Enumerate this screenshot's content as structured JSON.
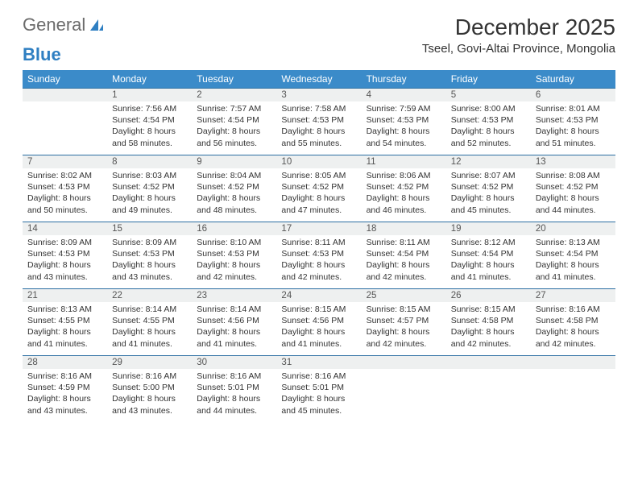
{
  "brand": {
    "word1": "General",
    "word2": "Blue"
  },
  "title": "December 2025",
  "location": "Tseel, Govi-Altai Province, Mongolia",
  "colors": {
    "header_bg": "#3b8bc9",
    "header_text": "#ffffff",
    "daynum_bg": "#eef0f0",
    "row_border": "#2c6fa3",
    "body_text": "#333333",
    "logo_gray": "#6b6b6b",
    "logo_blue": "#2f7fc2"
  },
  "weekdays": [
    "Sunday",
    "Monday",
    "Tuesday",
    "Wednesday",
    "Thursday",
    "Friday",
    "Saturday"
  ],
  "weeks": [
    [
      null,
      {
        "d": "1",
        "sr": "7:56 AM",
        "ss": "4:54 PM",
        "dl": "8 hours and 58 minutes."
      },
      {
        "d": "2",
        "sr": "7:57 AM",
        "ss": "4:54 PM",
        "dl": "8 hours and 56 minutes."
      },
      {
        "d": "3",
        "sr": "7:58 AM",
        "ss": "4:53 PM",
        "dl": "8 hours and 55 minutes."
      },
      {
        "d": "4",
        "sr": "7:59 AM",
        "ss": "4:53 PM",
        "dl": "8 hours and 54 minutes."
      },
      {
        "d": "5",
        "sr": "8:00 AM",
        "ss": "4:53 PM",
        "dl": "8 hours and 52 minutes."
      },
      {
        "d": "6",
        "sr": "8:01 AM",
        "ss": "4:53 PM",
        "dl": "8 hours and 51 minutes."
      }
    ],
    [
      {
        "d": "7",
        "sr": "8:02 AM",
        "ss": "4:53 PM",
        "dl": "8 hours and 50 minutes."
      },
      {
        "d": "8",
        "sr": "8:03 AM",
        "ss": "4:52 PM",
        "dl": "8 hours and 49 minutes."
      },
      {
        "d": "9",
        "sr": "8:04 AM",
        "ss": "4:52 PM",
        "dl": "8 hours and 48 minutes."
      },
      {
        "d": "10",
        "sr": "8:05 AM",
        "ss": "4:52 PM",
        "dl": "8 hours and 47 minutes."
      },
      {
        "d": "11",
        "sr": "8:06 AM",
        "ss": "4:52 PM",
        "dl": "8 hours and 46 minutes."
      },
      {
        "d": "12",
        "sr": "8:07 AM",
        "ss": "4:52 PM",
        "dl": "8 hours and 45 minutes."
      },
      {
        "d": "13",
        "sr": "8:08 AM",
        "ss": "4:52 PM",
        "dl": "8 hours and 44 minutes."
      }
    ],
    [
      {
        "d": "14",
        "sr": "8:09 AM",
        "ss": "4:53 PM",
        "dl": "8 hours and 43 minutes."
      },
      {
        "d": "15",
        "sr": "8:09 AM",
        "ss": "4:53 PM",
        "dl": "8 hours and 43 minutes."
      },
      {
        "d": "16",
        "sr": "8:10 AM",
        "ss": "4:53 PM",
        "dl": "8 hours and 42 minutes."
      },
      {
        "d": "17",
        "sr": "8:11 AM",
        "ss": "4:53 PM",
        "dl": "8 hours and 42 minutes."
      },
      {
        "d": "18",
        "sr": "8:11 AM",
        "ss": "4:54 PM",
        "dl": "8 hours and 42 minutes."
      },
      {
        "d": "19",
        "sr": "8:12 AM",
        "ss": "4:54 PM",
        "dl": "8 hours and 41 minutes."
      },
      {
        "d": "20",
        "sr": "8:13 AM",
        "ss": "4:54 PM",
        "dl": "8 hours and 41 minutes."
      }
    ],
    [
      {
        "d": "21",
        "sr": "8:13 AM",
        "ss": "4:55 PM",
        "dl": "8 hours and 41 minutes."
      },
      {
        "d": "22",
        "sr": "8:14 AM",
        "ss": "4:55 PM",
        "dl": "8 hours and 41 minutes."
      },
      {
        "d": "23",
        "sr": "8:14 AM",
        "ss": "4:56 PM",
        "dl": "8 hours and 41 minutes."
      },
      {
        "d": "24",
        "sr": "8:15 AM",
        "ss": "4:56 PM",
        "dl": "8 hours and 41 minutes."
      },
      {
        "d": "25",
        "sr": "8:15 AM",
        "ss": "4:57 PM",
        "dl": "8 hours and 42 minutes."
      },
      {
        "d": "26",
        "sr": "8:15 AM",
        "ss": "4:58 PM",
        "dl": "8 hours and 42 minutes."
      },
      {
        "d": "27",
        "sr": "8:16 AM",
        "ss": "4:58 PM",
        "dl": "8 hours and 42 minutes."
      }
    ],
    [
      {
        "d": "28",
        "sr": "8:16 AM",
        "ss": "4:59 PM",
        "dl": "8 hours and 43 minutes."
      },
      {
        "d": "29",
        "sr": "8:16 AM",
        "ss": "5:00 PM",
        "dl": "8 hours and 43 minutes."
      },
      {
        "d": "30",
        "sr": "8:16 AM",
        "ss": "5:01 PM",
        "dl": "8 hours and 44 minutes."
      },
      {
        "d": "31",
        "sr": "8:16 AM",
        "ss": "5:01 PM",
        "dl": "8 hours and 45 minutes."
      },
      null,
      null,
      null
    ]
  ],
  "labels": {
    "sunrise": "Sunrise:",
    "sunset": "Sunset:",
    "daylight": "Daylight:"
  }
}
